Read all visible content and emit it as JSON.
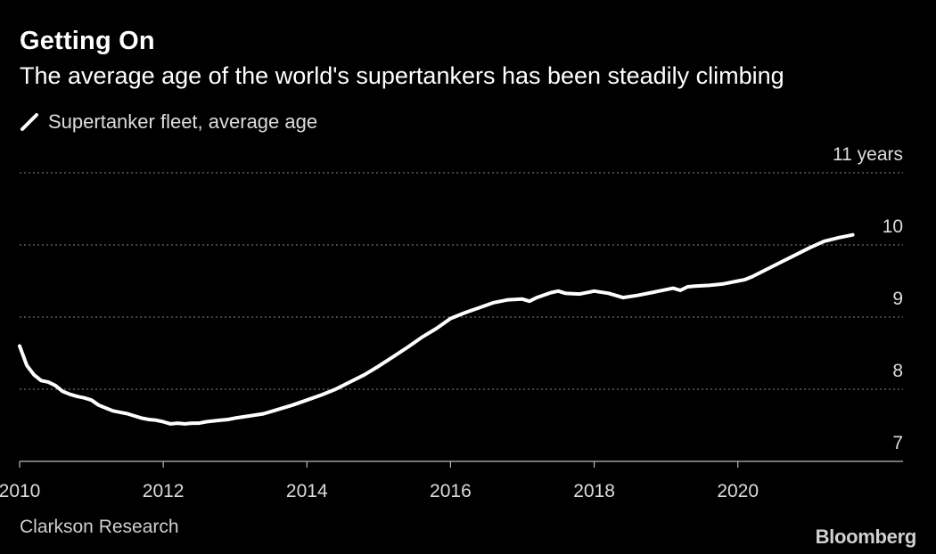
{
  "header": {
    "title": "Getting On",
    "subtitle": "The average age of the world's supertankers has been steadily climbing"
  },
  "legend": {
    "label": "Supertanker fleet, average age"
  },
  "footer": {
    "source": "Clarkson Research",
    "brand": "Bloomberg"
  },
  "colors": {
    "background": "#000000",
    "line": "#ffffff",
    "grid": "#888888",
    "text": "#dcdcdc"
  },
  "chart_data": {
    "type": "line",
    "title": "Getting On",
    "subtitle": "The average age of the world's supertankers has been steadily climbing",
    "xlabel": "",
    "ylabel": "",
    "xlim": [
      2010,
      2022.3
    ],
    "ylim": [
      7,
      11
    ],
    "grid": true,
    "legend_position": "top-left",
    "x_ticks": [
      {
        "value": 2010,
        "label": "2010"
      },
      {
        "value": 2012,
        "label": "2012"
      },
      {
        "value": 2014,
        "label": "2014"
      },
      {
        "value": 2016,
        "label": "2016"
      },
      {
        "value": 2018,
        "label": "2018"
      },
      {
        "value": 2020,
        "label": "2020"
      }
    ],
    "y_ticks": [
      {
        "value": 11,
        "label": "11 years"
      },
      {
        "value": 10,
        "label": "10"
      },
      {
        "value": 9,
        "label": "9"
      },
      {
        "value": 8,
        "label": "8"
      },
      {
        "value": 7,
        "label": "7"
      }
    ],
    "series": [
      {
        "name": "Supertanker fleet, average age",
        "x": [
          2010.0,
          2010.1,
          2010.2,
          2010.3,
          2010.4,
          2010.5,
          2010.6,
          2010.7,
          2010.8,
          2010.9,
          2011.0,
          2011.1,
          2011.2,
          2011.3,
          2011.4,
          2011.5,
          2011.6,
          2011.7,
          2011.8,
          2011.9,
          2012.0,
          2012.1,
          2012.2,
          2012.3,
          2012.4,
          2012.5,
          2012.6,
          2012.7,
          2012.8,
          2012.9,
          2013.0,
          2013.2,
          2013.4,
          2013.6,
          2013.8,
          2014.0,
          2014.2,
          2014.4,
          2014.6,
          2014.8,
          2015.0,
          2015.2,
          2015.4,
          2015.6,
          2015.8,
          2016.0,
          2016.2,
          2016.4,
          2016.6,
          2016.8,
          2017.0,
          2017.1,
          2017.2,
          2017.4,
          2017.5,
          2017.6,
          2017.8,
          2018.0,
          2018.2,
          2018.4,
          2018.6,
          2018.8,
          2019.0,
          2019.1,
          2019.2,
          2019.3,
          2019.4,
          2019.6,
          2019.8,
          2020.0,
          2020.1,
          2020.2,
          2020.4,
          2020.6,
          2020.8,
          2021.0,
          2021.2,
          2021.4,
          2021.6
        ],
        "values": [
          8.6,
          8.33,
          8.2,
          8.12,
          8.1,
          8.05,
          7.97,
          7.93,
          7.9,
          7.88,
          7.85,
          7.78,
          7.74,
          7.7,
          7.68,
          7.66,
          7.63,
          7.6,
          7.58,
          7.57,
          7.55,
          7.52,
          7.53,
          7.52,
          7.53,
          7.53,
          7.55,
          7.56,
          7.57,
          7.58,
          7.6,
          7.63,
          7.66,
          7.72,
          7.78,
          7.85,
          7.92,
          8.0,
          8.1,
          8.2,
          8.32,
          8.45,
          8.58,
          8.72,
          8.84,
          8.98,
          9.06,
          9.13,
          9.2,
          9.24,
          9.25,
          9.22,
          9.27,
          9.34,
          9.36,
          9.33,
          9.32,
          9.36,
          9.33,
          9.27,
          9.3,
          9.34,
          9.38,
          9.4,
          9.37,
          9.42,
          9.43,
          9.44,
          9.46,
          9.5,
          9.52,
          9.56,
          9.66,
          9.76,
          9.86,
          9.96,
          10.05,
          10.1,
          10.14
        ]
      }
    ]
  }
}
